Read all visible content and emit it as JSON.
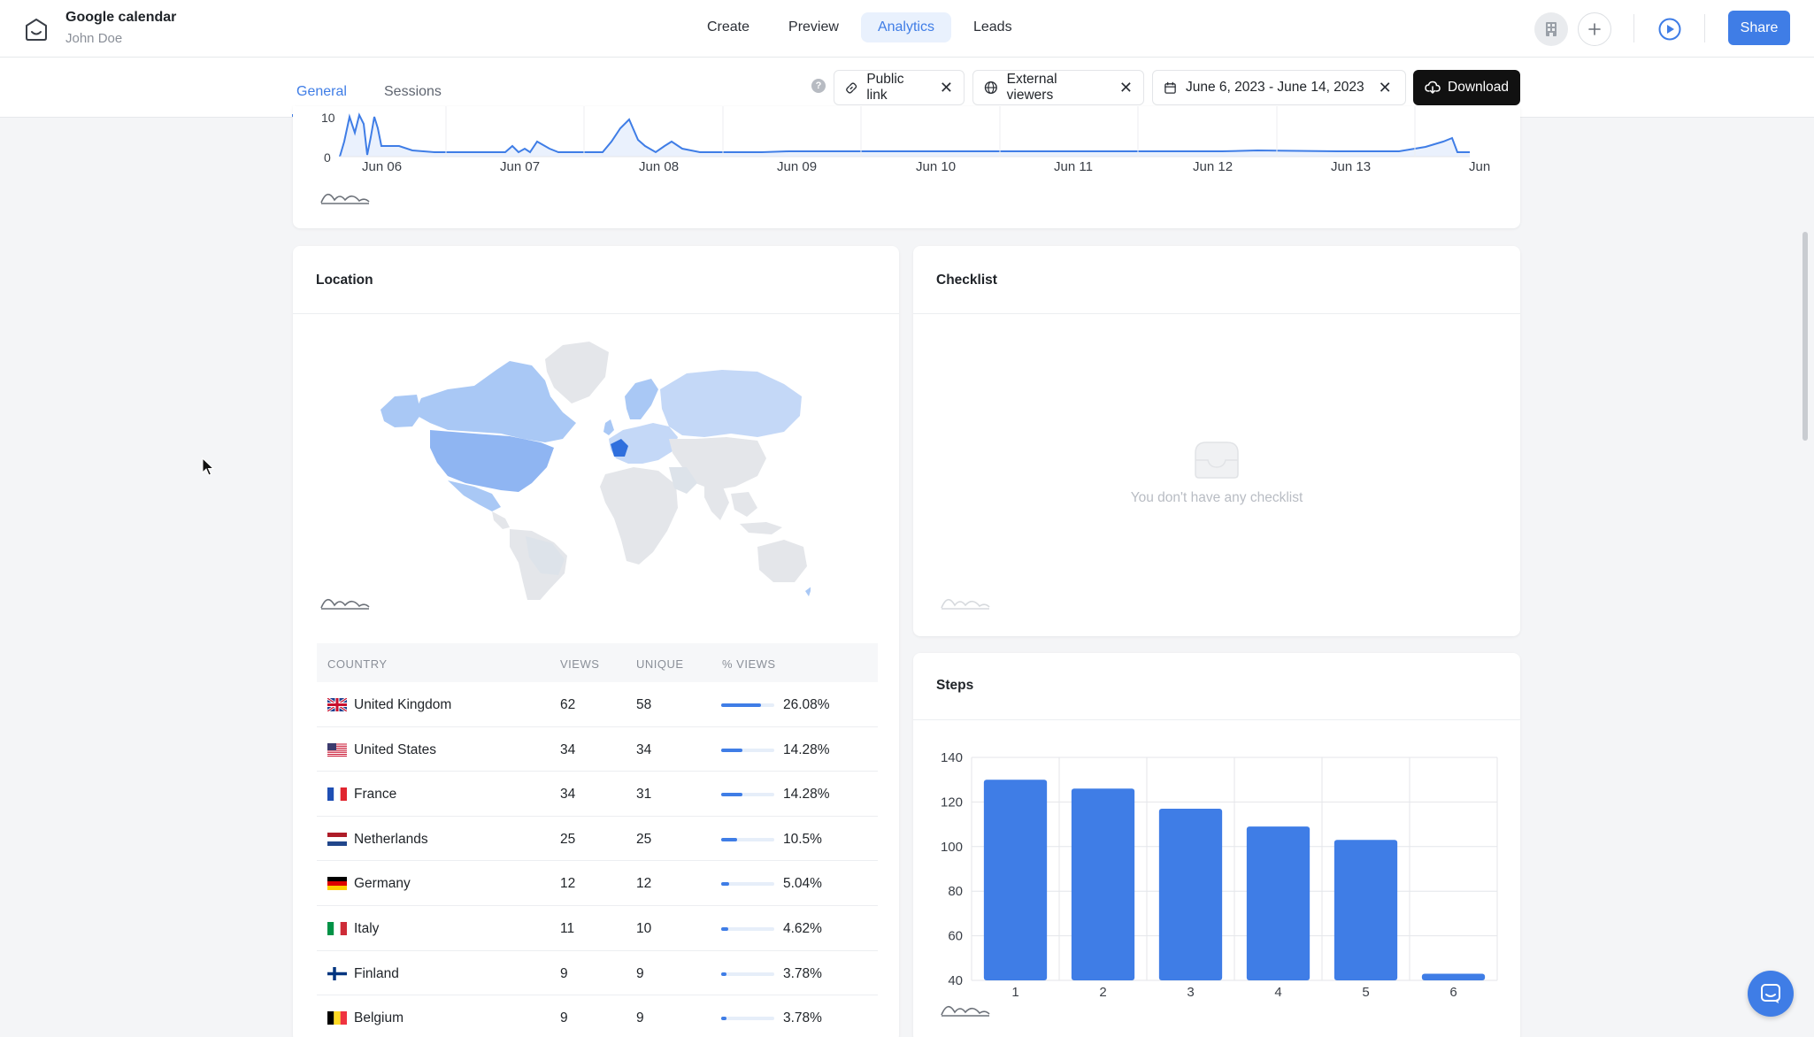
{
  "header": {
    "app_title": "Google calendar",
    "user_name": "John Doe",
    "nav": [
      {
        "label": "Create",
        "active": false
      },
      {
        "label": "Preview",
        "active": false
      },
      {
        "label": "Analytics",
        "active": true
      },
      {
        "label": "Leads",
        "active": false
      }
    ],
    "share_label": "Share"
  },
  "subbar": {
    "tabs": [
      {
        "label": "General",
        "active": true
      },
      {
        "label": "Sessions",
        "active": false
      }
    ],
    "help": "?",
    "filters": {
      "public_link": "Public link",
      "external_viewers": "External viewers",
      "date_range": "June 6, 2023 - June 14, 2023"
    },
    "download_label": "Download"
  },
  "timeline": {
    "y_ticks": [
      "0",
      "10"
    ],
    "x_labels": [
      "Jun 06",
      "Jun 07",
      "Jun 08",
      "Jun 09",
      "Jun 10",
      "Jun 11",
      "Jun 12",
      "Jun 13",
      "Jun"
    ]
  },
  "location": {
    "title": "Location",
    "columns": {
      "country": "COUNTRY",
      "views": "VIEWS",
      "unique": "UNIQUE",
      "pct": "% VIEWS"
    },
    "rows": [
      {
        "country": "United Kingdom",
        "views": "62",
        "unique": "58",
        "pct": "26.08%",
        "fraction": 0.2608,
        "flag": "gb"
      },
      {
        "country": "United States",
        "views": "34",
        "unique": "34",
        "pct": "14.28%",
        "fraction": 0.1428,
        "flag": "us"
      },
      {
        "country": "France",
        "views": "34",
        "unique": "31",
        "pct": "14.28%",
        "fraction": 0.1428,
        "flag": "fr"
      },
      {
        "country": "Netherlands",
        "views": "25",
        "unique": "25",
        "pct": "10.5%",
        "fraction": 0.105,
        "flag": "nl"
      },
      {
        "country": "Germany",
        "views": "12",
        "unique": "12",
        "pct": "5.04%",
        "fraction": 0.0504,
        "flag": "de"
      },
      {
        "country": "Italy",
        "views": "11",
        "unique": "10",
        "pct": "4.62%",
        "fraction": 0.0462,
        "flag": "it"
      },
      {
        "country": "Finland",
        "views": "9",
        "unique": "9",
        "pct": "3.78%",
        "fraction": 0.0378,
        "flag": "fi"
      },
      {
        "country": "Belgium",
        "views": "9",
        "unique": "9",
        "pct": "3.78%",
        "fraction": 0.0378,
        "flag": "be"
      }
    ]
  },
  "checklist": {
    "title": "Checklist",
    "empty_message": "You don't have any checklist"
  },
  "steps": {
    "title": "Steps"
  },
  "colors": {
    "accent": "#3f7de6",
    "map_highlight": "#2f6fdd",
    "map_light": "#a9c8f5",
    "map_empty": "#e4e6ea"
  },
  "chart_data": [
    {
      "type": "line",
      "x": [
        "Jun 06",
        "Jun 07",
        "Jun 08",
        "Jun 09",
        "Jun 10",
        "Jun 11",
        "Jun 12",
        "Jun 13",
        "Jun"
      ],
      "y_ticks": [
        0,
        10
      ],
      "ylim": [
        0,
        10
      ],
      "note_visible_only_partially": false
    },
    {
      "type": "bar",
      "categories": [
        "1",
        "2",
        "3",
        "4",
        "5",
        "6"
      ],
      "values": [
        130,
        126,
        117,
        109,
        103,
        43
      ],
      "ylim": [
        40,
        140
      ],
      "y_ticks": [
        40,
        60,
        80,
        100,
        120,
        140
      ],
      "grid": true
    }
  ]
}
